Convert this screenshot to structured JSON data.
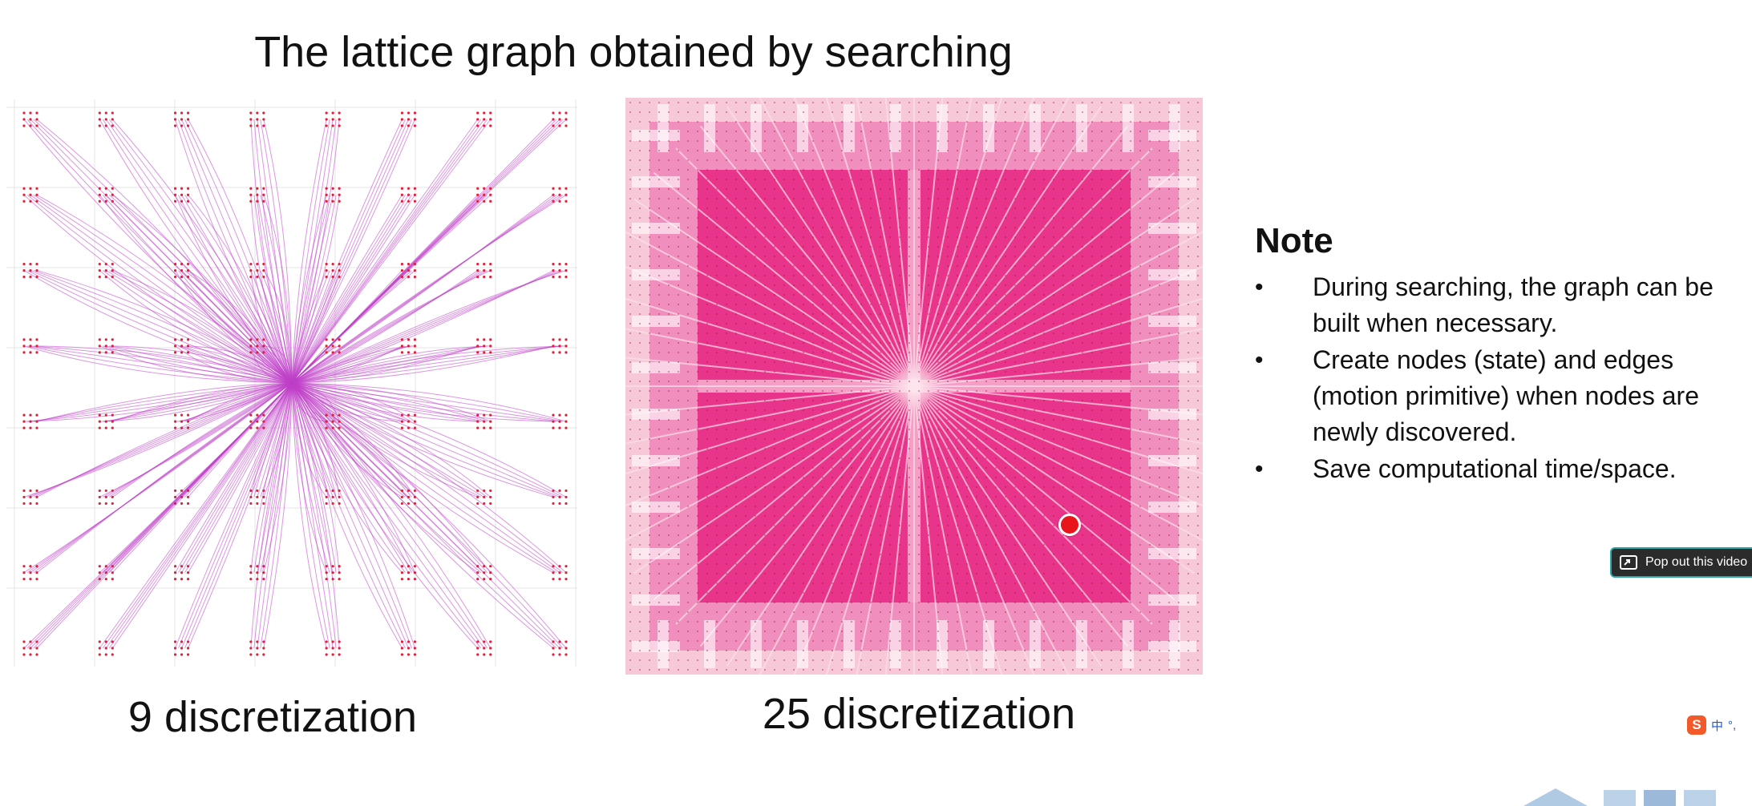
{
  "slide": {
    "title": "The lattice graph obtained by searching",
    "left_caption": "9 discretization",
    "right_caption": "25 discretization"
  },
  "note": {
    "heading": "Note",
    "bullet_glyph": "•",
    "items": [
      "During searching, the graph can be built when necessary.",
      "Create nodes (state) and edges (motion primitive) when nodes are newly discovered.",
      "Save computational time/space."
    ]
  },
  "video_overlay": {
    "popout_label": "Pop out this video",
    "popout_icon": "popout-icon"
  },
  "ime_toolbar": {
    "logo": "S",
    "lang": "中",
    "punct": "°,"
  },
  "colors": {
    "edge": "#c040c8",
    "node": "#e0203a",
    "dense_fill": "#e8348a",
    "cursor": "#e8161b",
    "popout_border": "#2aa6a6"
  }
}
